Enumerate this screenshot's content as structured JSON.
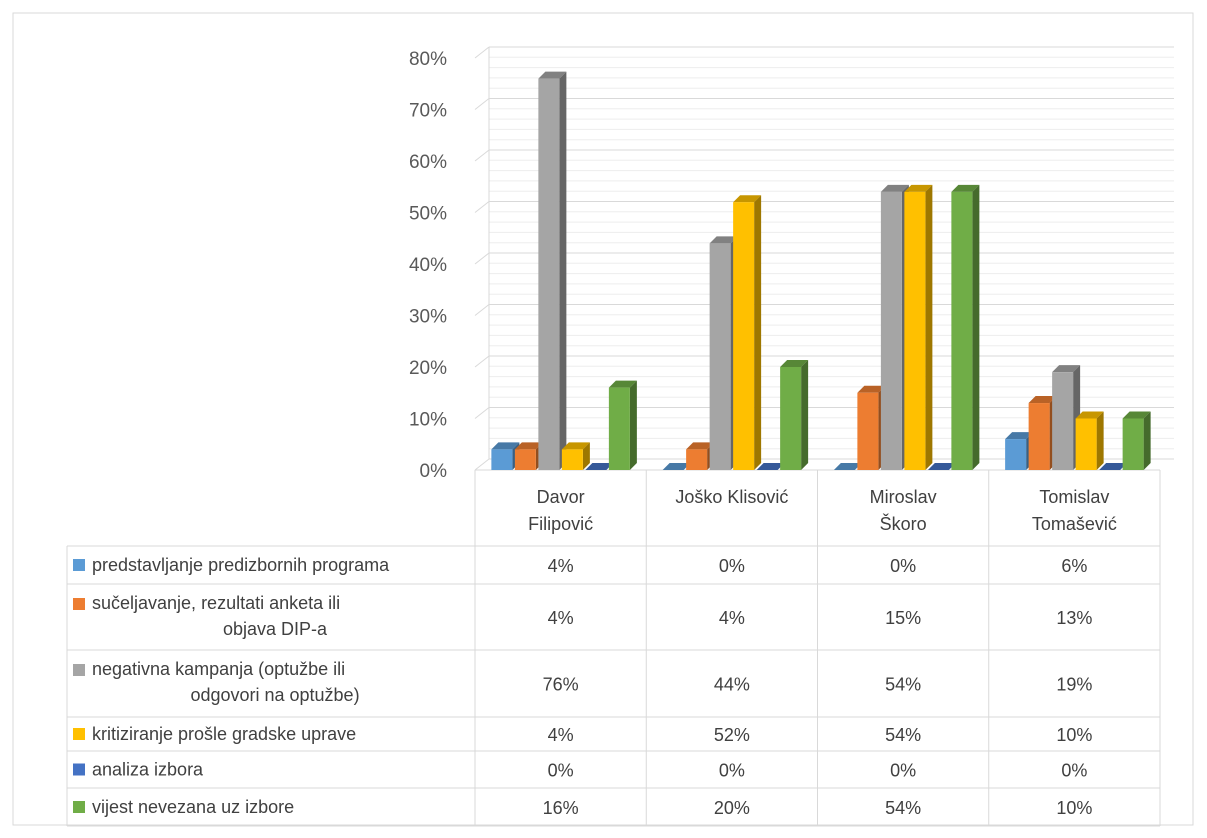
{
  "chart_data": {
    "type": "bar",
    "categories": [
      [
        "Davor",
        "Filipović"
      ],
      [
        "Joško Klisović"
      ],
      [
        "Miroslav",
        "Škoro"
      ],
      [
        "Tomislav",
        "Tomašević"
      ]
    ],
    "ylim": [
      0,
      80
    ],
    "y_ticks": [
      "0%",
      "10%",
      "20%",
      "30%",
      "40%",
      "50%",
      "60%",
      "70%",
      "80%"
    ],
    "grid": true,
    "legend_placement": "data table below chart",
    "series": [
      {
        "name": [
          "predstavljanje predizbornih programa"
        ],
        "color": "#5b9bd5",
        "values": [
          4,
          0,
          0,
          6
        ],
        "labels": [
          "4%",
          "0%",
          "0%",
          "6%"
        ]
      },
      {
        "name": [
          "sučeljavanje, rezultati anketa ili",
          "objava DIP-a"
        ],
        "color": "#ed7d31",
        "values": [
          4,
          4,
          15,
          13
        ],
        "labels": [
          "4%",
          "4%",
          "15%",
          "13%"
        ]
      },
      {
        "name": [
          "negativna kampanja (optužbe ili",
          "odgovori na optužbe)"
        ],
        "color": "#a5a5a5",
        "values": [
          76,
          44,
          54,
          19
        ],
        "labels": [
          "76%",
          "44%",
          "54%",
          "19%"
        ]
      },
      {
        "name": [
          "kritiziranje prošle gradske uprave"
        ],
        "color": "#ffc000",
        "values": [
          4,
          52,
          54,
          10
        ],
        "labels": [
          "4%",
          "52%",
          "54%",
          "10%"
        ]
      },
      {
        "name": [
          "analiza izbora"
        ],
        "color": "#4472c4",
        "values": [
          0,
          0,
          0,
          0
        ],
        "labels": [
          "0%",
          "0%",
          "0%",
          "0%"
        ]
      },
      {
        "name": [
          "vijest nevezana uz izbore"
        ],
        "color": "#70ad47",
        "values": [
          16,
          20,
          54,
          10
        ],
        "labels": [
          "16%",
          "20%",
          "54%",
          "10%"
        ]
      }
    ]
  }
}
